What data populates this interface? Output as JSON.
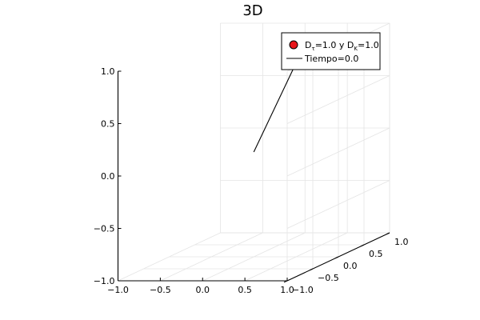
{
  "chart_data": {
    "type": "scatter",
    "title": "3D",
    "xlabel": "",
    "ylabel": "",
    "zlabel": "",
    "xlim": [
      -1.0,
      1.0
    ],
    "ylim": [
      -1.0,
      1.0
    ],
    "zlim": [
      -1.0,
      1.0
    ],
    "x_ticks": [
      "−1.0",
      "−0.5",
      "0.0",
      "0.5",
      "1.0"
    ],
    "y_ticks": [
      "−1.0",
      "−0.5",
      "0.0",
      "0.5",
      "1.0"
    ],
    "z_ticks": [
      "−1.0",
      "−0.5",
      "0.0",
      "0.5",
      "1.0"
    ],
    "grid": true,
    "legend_position": "top-right",
    "series": [
      {
        "name": "D_τ=1.0 y D_K=1.0",
        "legend_main": [
          "D",
          "=1.0 y D",
          "=1.0"
        ],
        "legend_subs": [
          "τ",
          "K"
        ],
        "type": "scatter",
        "color": "#e8151b",
        "points": [
          {
            "x": 0.3,
            "y": 0.3,
            "z": 0.75
          }
        ]
      },
      {
        "name": "Tiempo=0.0",
        "type": "line",
        "color": "#000000",
        "points": [
          {
            "x": 0.0,
            "y": 0.0,
            "z": 0.0
          },
          {
            "x": 0.3,
            "y": 0.3,
            "z": 0.75
          }
        ]
      }
    ]
  }
}
